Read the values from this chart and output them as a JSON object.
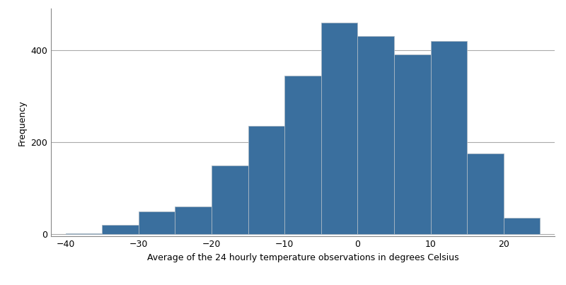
{
  "bin_edges": [
    -40,
    -35,
    -30,
    -25,
    -20,
    -15,
    -10,
    -5,
    0,
    5,
    10,
    15,
    20,
    25
  ],
  "frequencies": [
    2,
    20,
    50,
    60,
    150,
    235,
    345,
    460,
    430,
    390,
    420,
    175,
    35
  ],
  "bar_color": "#3a6f9e",
  "bar_edgecolor": "#aab8c4",
  "xlabel": "Average of the 24 hourly temperature observations in degrees Celsius",
  "ylabel": "Frequency",
  "xlim": [
    -42,
    27
  ],
  "ylim": [
    -5,
    490
  ],
  "yticks": [
    0,
    200,
    400
  ],
  "xticks": [
    -40,
    -30,
    -20,
    -10,
    0,
    10,
    20
  ],
  "background_color": "#ffffff",
  "grid_color": "#aaaaaa",
  "spine_color": "#888888",
  "xlabel_fontsize": 9,
  "ylabel_fontsize": 9,
  "tick_fontsize": 9
}
